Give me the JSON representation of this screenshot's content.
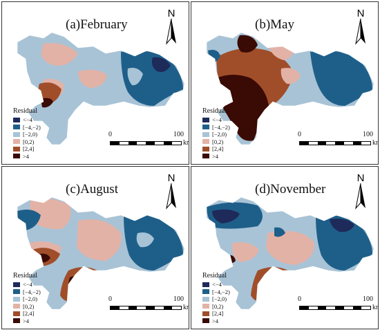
{
  "colors": {
    "lt_neg4": "#1e2a5a",
    "neg4_neg2": "#1e5f8a",
    "neg2_0": "#a8c3d6",
    "0_2": "#e3b2a6",
    "2_4": "#a04e2a",
    "gt4": "#3a0a05"
  },
  "legend": {
    "title": "Residual",
    "items": [
      {
        "label": "<−4",
        "color_key": "lt_neg4"
      },
      {
        "label": "[−4,−2)",
        "color_key": "neg4_neg2"
      },
      {
        "label": "[−2,0)",
        "color_key": "neg2_0"
      },
      {
        "label": "[0,2)",
        "color_key": "0_2"
      },
      {
        "label": "[2,4]",
        "color_key": "2_4"
      },
      {
        "label": ">4",
        "color_key": "gt4"
      }
    ]
  },
  "scale": {
    "zero": "0",
    "hundred": "100",
    "unit": "km"
  },
  "north_label": "N",
  "panels": [
    {
      "title": "(a)February",
      "dominant": [
        "neg2_0",
        "neg4_neg2",
        "0_2"
      ]
    },
    {
      "title": "(b)May",
      "dominant": [
        "gt4",
        "2_4",
        "neg4_neg2"
      ]
    },
    {
      "title": "(c)August",
      "dominant": [
        "neg2_0",
        "0_2",
        "neg4_neg2"
      ]
    },
    {
      "title": "(d)November",
      "dominant": [
        "neg2_0",
        "neg4_neg2",
        "0_2"
      ]
    }
  ]
}
